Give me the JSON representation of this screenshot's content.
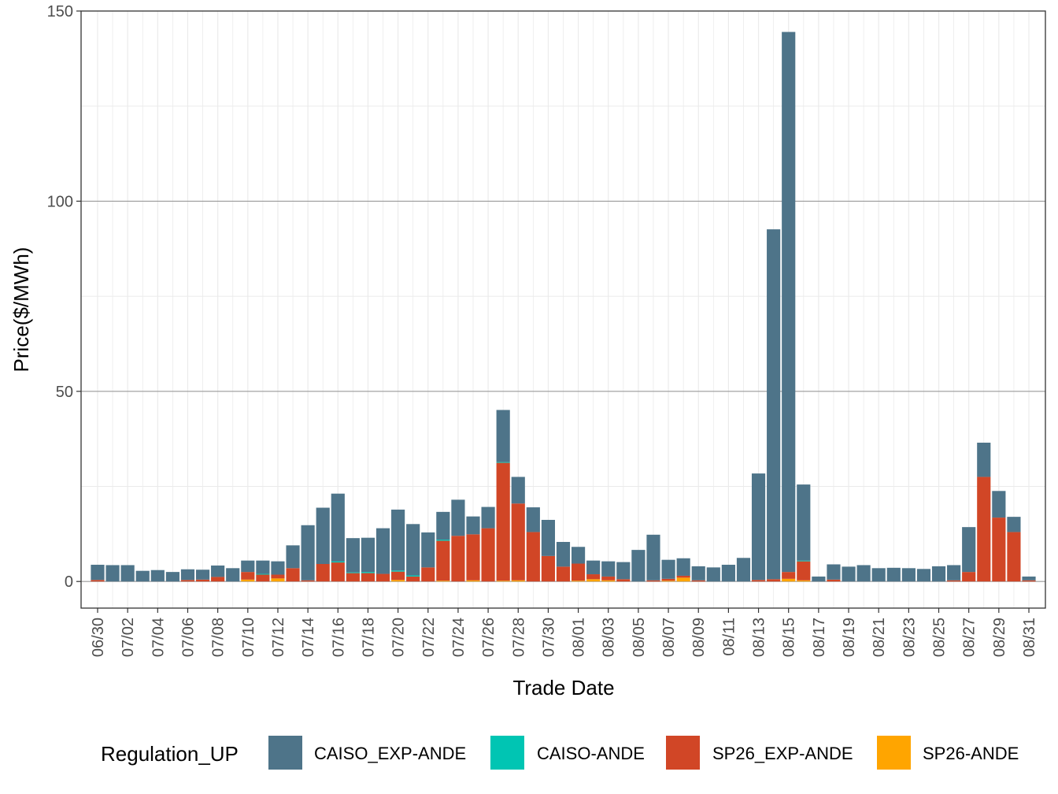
{
  "chart_data": {
    "type": "bar",
    "stacked": true,
    "xlabel": "Trade Date",
    "ylabel": "Price($/MWh)",
    "ylim": [
      -7,
      150
    ],
    "y_ticks": [
      0,
      50,
      100,
      150
    ],
    "grid": true,
    "legend_position": "bottom",
    "legend_title": "Regulation_UP",
    "categories": [
      "06/30",
      "07/01",
      "07/02",
      "07/03",
      "07/04",
      "07/05",
      "07/06",
      "07/07",
      "07/08",
      "07/09",
      "07/10",
      "07/11",
      "07/12",
      "07/13",
      "07/14",
      "07/15",
      "07/16",
      "07/17",
      "07/18",
      "07/19",
      "07/20",
      "07/21",
      "07/22",
      "07/23",
      "07/24",
      "07/25",
      "07/26",
      "07/27",
      "07/28",
      "07/29",
      "07/30",
      "07/31",
      "08/01",
      "08/02",
      "08/03",
      "08/04",
      "08/05",
      "08/06",
      "08/07",
      "08/08",
      "08/09",
      "08/10",
      "08/11",
      "08/12",
      "08/13",
      "08/14",
      "08/15",
      "08/16",
      "08/17",
      "08/18",
      "08/19",
      "08/20",
      "08/21",
      "08/22",
      "08/23",
      "08/24",
      "08/25",
      "08/26",
      "08/27",
      "08/28",
      "08/29",
      "08/30",
      "08/31"
    ],
    "x_tick_labels": [
      "06/30",
      "07/02",
      "07/04",
      "07/06",
      "07/08",
      "07/10",
      "07/12",
      "07/14",
      "07/16",
      "07/18",
      "07/20",
      "07/22",
      "07/24",
      "07/26",
      "07/28",
      "07/30",
      "08/01",
      "08/03",
      "08/05",
      "08/07",
      "08/09",
      "08/11",
      "08/13",
      "08/15",
      "08/17",
      "08/19",
      "08/21",
      "08/23",
      "08/25",
      "08/27",
      "08/29",
      "08/31"
    ],
    "series": [
      {
        "name": "CAISO_EXP-ANDE",
        "color": "#4e7489",
        "values": [
          4.0,
          4.3,
          4.3,
          2.8,
          3.0,
          2.5,
          2.8,
          2.6,
          3.0,
          3.5,
          3.0,
          3.5,
          3.5,
          6.0,
          14.5,
          14.8,
          17.8,
          9.0,
          9.0,
          12.0,
          16.0,
          13.5,
          9.2,
          7.3,
          9.5,
          4.7,
          5.6,
          13.7,
          7.0,
          6.5,
          9.5,
          6.5,
          4.4,
          3.6,
          4.0,
          4.5,
          8.3,
          12.0,
          5.0,
          4.6,
          3.7,
          3.7,
          4.4,
          6.2,
          28.0,
          92.0,
          142.0,
          20.0,
          1.3,
          4.0,
          3.9,
          4.3,
          3.5,
          3.6,
          3.5,
          3.3,
          4.0,
          4.0,
          11.8,
          9.0,
          7.0,
          4.0,
          1.0
        ]
      },
      {
        "name": "CAISO-ANDE",
        "color": "#00c5b3",
        "values": [
          0,
          0,
          0,
          0,
          0,
          0,
          0,
          0,
          0,
          0,
          0,
          0.2,
          0,
          0,
          0,
          0,
          0.3,
          0.2,
          0.3,
          0,
          0.3,
          0.3,
          0,
          0.3,
          0,
          0,
          0,
          0.2,
          0,
          0,
          0,
          0,
          0,
          0,
          0,
          0,
          0,
          0,
          0,
          0,
          0,
          0,
          0,
          0,
          0,
          0,
          0,
          0.2,
          0,
          0,
          0,
          0,
          0,
          0,
          0,
          0,
          0,
          0,
          0,
          0,
          0,
          0,
          0
        ]
      },
      {
        "name": "SP26_EXP-ANDE",
        "color": "#d14626",
        "values": [
          0.4,
          0,
          0,
          0,
          0,
          0,
          0.4,
          0.5,
          1.2,
          0,
          2.0,
          1.8,
          1.0,
          3.5,
          0.3,
          4.6,
          5.0,
          2.2,
          2.2,
          2.0,
          2.2,
          1.3,
          3.7,
          10.5,
          12.0,
          12.1,
          14.0,
          31.0,
          20.2,
          13.0,
          6.7,
          3.9,
          4.5,
          1.3,
          1.0,
          0.6,
          0,
          0.3,
          0.5,
          0.5,
          0.3,
          0,
          0,
          0,
          0.4,
          0.6,
          1.8,
          5.0,
          0,
          0.5,
          0,
          0,
          0,
          0,
          0,
          0,
          0,
          0.3,
          2.5,
          27.5,
          16.8,
          13.0,
          0.3
        ]
      },
      {
        "name": "SP26-ANDE",
        "color": "#ffa500",
        "values": [
          0,
          0,
          0,
          0,
          0,
          0,
          0,
          0,
          0,
          0,
          0.5,
          0,
          0.8,
          0,
          0,
          0,
          0,
          0,
          0,
          0,
          0.4,
          0,
          0,
          0.2,
          0,
          0.3,
          0,
          0.2,
          0.3,
          0,
          0,
          0,
          0.2,
          0.6,
          0.3,
          0,
          0,
          0,
          0.2,
          1.0,
          0,
          0,
          0,
          0,
          0,
          0,
          0.7,
          0.3,
          0,
          0,
          0,
          0,
          0,
          0,
          0,
          0,
          0,
          0,
          0,
          0,
          0,
          0,
          0
        ]
      }
    ]
  }
}
